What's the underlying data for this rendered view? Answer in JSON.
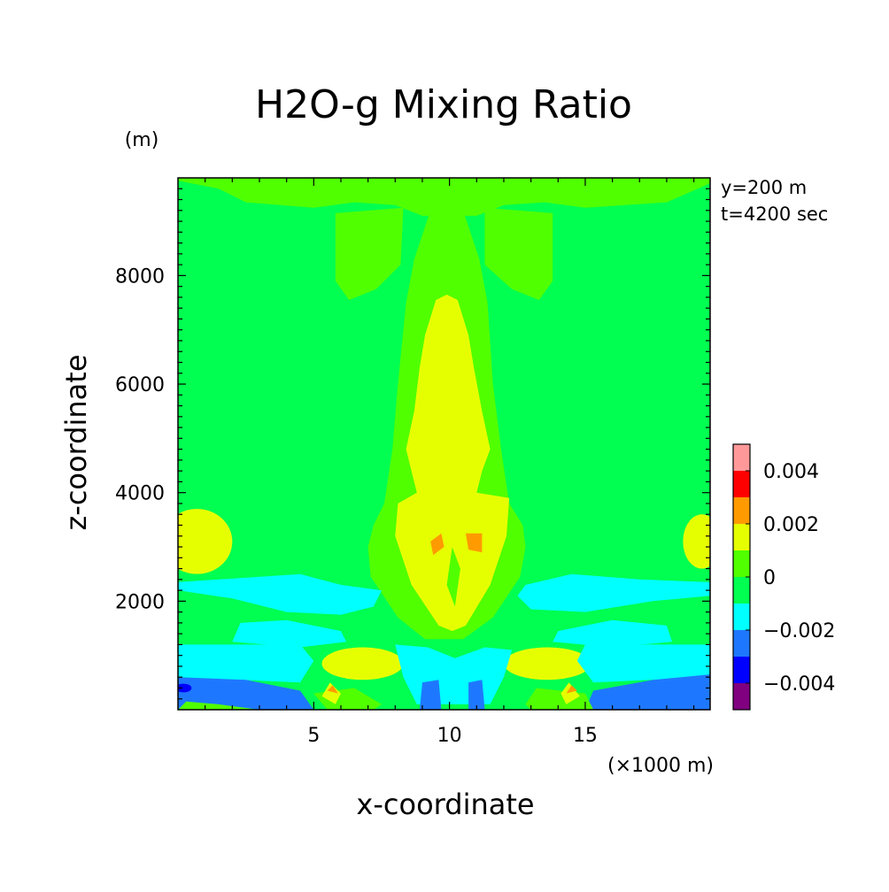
{
  "chart_data": {
    "type": "heatmap",
    "subtype": "filled-contour",
    "title": "H2O-g Mixing Ratio",
    "xlabel": "x-coordinate",
    "ylabel": "z-coordinate",
    "x_unit": "(×1000 m)",
    "y_unit": "(m)",
    "annotations": [
      "y=200 m",
      "t=4200 sec"
    ],
    "xlim": [
      0,
      19.6
    ],
    "ylim": [
      0,
      9800
    ],
    "x_ticks": [
      5,
      10,
      15
    ],
    "y_ticks": [
      2000,
      4000,
      6000,
      8000
    ],
    "colorbar": {
      "levels": [
        -0.005,
        -0.004,
        -0.003,
        -0.002,
        -0.001,
        0,
        0.001,
        0.002,
        0.003,
        0.004,
        0.005
      ],
      "colors": [
        "#800080",
        "#0000ff",
        "#1e78ff",
        "#00ffff",
        "#00ff50",
        "#50ff00",
        "#e6ff00",
        "#ff9a00",
        "#ff0000",
        "#ff9999"
      ],
      "tick_labels": [
        "-0.004",
        "-0.002",
        "0",
        "0.002",
        "0.004"
      ],
      "tick_values": [
        -0.004,
        -0.002,
        0,
        0.002,
        0.004
      ]
    },
    "background_value": -0.0005,
    "regions": [
      {
        "band": "0 to 0.001",
        "shape": "poly",
        "pts": [
          [
            0,
            9800
          ],
          [
            19.6,
            9800
          ],
          [
            19.6,
            9700
          ],
          [
            18,
            9350
          ],
          [
            15,
            9250
          ],
          [
            13.5,
            9350
          ],
          [
            12,
            9300
          ],
          [
            11,
            9100
          ],
          [
            9,
            9100
          ],
          [
            8,
            9300
          ],
          [
            6.5,
            9350
          ],
          [
            5,
            9250
          ],
          [
            2.5,
            9350
          ],
          [
            1.5,
            9600
          ],
          [
            0,
            9750
          ]
        ]
      },
      {
        "band": "0 to 0.001",
        "shape": "poly",
        "pts": [
          [
            5.8,
            9150
          ],
          [
            8.3,
            9250
          ],
          [
            8.2,
            8200
          ],
          [
            7.3,
            7750
          ],
          [
            6.3,
            7550
          ],
          [
            5.8,
            7900
          ]
        ]
      },
      {
        "band": "0 to 0.001",
        "shape": "poly",
        "pts": [
          [
            11.3,
            9250
          ],
          [
            13.8,
            9150
          ],
          [
            13.8,
            7900
          ],
          [
            13.3,
            7550
          ],
          [
            12.3,
            7750
          ],
          [
            11.3,
            8200
          ]
        ]
      },
      {
        "band": "0 to 0.001",
        "shape": "poly",
        "pts": [
          [
            9.3,
            9200
          ],
          [
            10.5,
            9200
          ],
          [
            11.1,
            8300
          ],
          [
            11.4,
            7500
          ],
          [
            11.6,
            6000
          ],
          [
            11.9,
            4800
          ],
          [
            12.2,
            3800
          ],
          [
            12.7,
            3400
          ],
          [
            12.8,
            3000
          ],
          [
            12.6,
            2450
          ],
          [
            11.6,
            1700
          ],
          [
            10.5,
            1300
          ],
          [
            9.1,
            1300
          ],
          [
            8.1,
            1700
          ],
          [
            7.1,
            2450
          ],
          [
            7.0,
            3000
          ],
          [
            7.2,
            3400
          ],
          [
            7.6,
            3800
          ],
          [
            7.9,
            4800
          ],
          [
            8.1,
            6000
          ],
          [
            8.4,
            7500
          ],
          [
            8.7,
            8300
          ]
        ]
      },
      {
        "band": "0.001 to 0.002",
        "shape": "poly",
        "pts": [
          [
            9.9,
            7650
          ],
          [
            10.3,
            7550
          ],
          [
            10.7,
            6900
          ],
          [
            10.9,
            6300
          ],
          [
            11.2,
            5500
          ],
          [
            11.5,
            4800
          ],
          [
            11.2,
            4400
          ],
          [
            11.0,
            4000
          ],
          [
            12.2,
            3900
          ],
          [
            12.1,
            3200
          ],
          [
            11.5,
            2300
          ],
          [
            10.6,
            1550
          ],
          [
            10.1,
            1450
          ],
          [
            9.6,
            1550
          ],
          [
            8.6,
            2300
          ],
          [
            8.0,
            3200
          ],
          [
            8.1,
            3800
          ],
          [
            8.8,
            4000
          ],
          [
            8.6,
            4400
          ],
          [
            8.4,
            4800
          ],
          [
            8.7,
            5500
          ],
          [
            8.9,
            6300
          ],
          [
            9.1,
            6900
          ],
          [
            9.5,
            7550
          ]
        ]
      },
      {
        "band": "0.001 to 0.002",
        "shape": "ellipse",
        "cx": 0.7,
        "cy": 3100,
        "rx": 1.3,
        "ry": 600
      },
      {
        "band": "0.001 to 0.002",
        "shape": "ellipse",
        "cx": 19.3,
        "cy": 3100,
        "rx": 0.7,
        "ry": 500
      },
      {
        "band": "0.001 to 0.002",
        "shape": "ellipse",
        "cx": 6.8,
        "cy": 850,
        "rx": 1.5,
        "ry": 300
      },
      {
        "band": "0.001 to 0.002",
        "shape": "ellipse",
        "cx": 13.6,
        "cy": 850,
        "rx": 1.6,
        "ry": 300
      },
      {
        "band": "0.002 to 0.003",
        "shape": "poly",
        "pts": [
          [
            9.3,
            3100
          ],
          [
            9.7,
            3250
          ],
          [
            9.8,
            3000
          ],
          [
            9.4,
            2850
          ]
        ]
      },
      {
        "band": "0.002 to 0.003",
        "shape": "poly",
        "pts": [
          [
            10.6,
            3250
          ],
          [
            11.2,
            3250
          ],
          [
            11.2,
            2900
          ],
          [
            10.7,
            2950
          ]
        ]
      },
      {
        "band": "0 to 0.001",
        "shape": "poly",
        "pts": [
          [
            10.1,
            3000
          ],
          [
            10.4,
            2600
          ],
          [
            10.2,
            1900
          ],
          [
            9.9,
            2300
          ]
        ]
      },
      {
        "band": "-0.002 to -0.001",
        "shape": "poly",
        "pts": [
          [
            1.5,
            2400
          ],
          [
            4.5,
            2500
          ],
          [
            6.0,
            2300
          ],
          [
            7.5,
            2200
          ],
          [
            7.2,
            1900
          ],
          [
            6.0,
            1750
          ],
          [
            4.0,
            1800
          ],
          [
            2.0,
            2050
          ],
          [
            0,
            2200
          ],
          [
            0,
            2350
          ]
        ]
      },
      {
        "band": "-0.002 to -0.001",
        "shape": "poly",
        "pts": [
          [
            12.8,
            2300
          ],
          [
            14.5,
            2500
          ],
          [
            17.0,
            2400
          ],
          [
            19.6,
            2350
          ],
          [
            19.6,
            2100
          ],
          [
            17.5,
            2000
          ],
          [
            15.0,
            1800
          ],
          [
            13.0,
            1850
          ],
          [
            12.5,
            2100
          ]
        ]
      },
      {
        "band": "-0.002 to -0.001",
        "shape": "poly",
        "pts": [
          [
            2.3,
            1600
          ],
          [
            4.0,
            1650
          ],
          [
            6.0,
            1450
          ],
          [
            6.2,
            1250
          ],
          [
            4.5,
            1150
          ],
          [
            2.0,
            1250
          ]
        ]
      },
      {
        "band": "-0.002 to -0.001",
        "shape": "poly",
        "pts": [
          [
            14.0,
            1450
          ],
          [
            16.0,
            1650
          ],
          [
            18.0,
            1550
          ],
          [
            18.2,
            1250
          ],
          [
            16.0,
            1150
          ],
          [
            13.8,
            1250
          ]
        ]
      },
      {
        "band": "-0.002 to -0.001",
        "shape": "poly",
        "pts": [
          [
            0,
            1200
          ],
          [
            4.5,
            1200
          ],
          [
            5.0,
            900
          ],
          [
            4.5,
            500
          ],
          [
            0,
            600
          ]
        ]
      },
      {
        "band": "-0.002 to -0.001",
        "shape": "poly",
        "pts": [
          [
            15.0,
            1200
          ],
          [
            19.6,
            1200
          ],
          [
            19.6,
            600
          ],
          [
            15.3,
            500
          ],
          [
            14.7,
            900
          ]
        ]
      },
      {
        "band": "-0.002 to -0.001",
        "shape": "poly",
        "pts": [
          [
            8.0,
            1200
          ],
          [
            9.2,
            1150
          ],
          [
            10.2,
            950
          ],
          [
            11.3,
            1150
          ],
          [
            12.3,
            1100
          ],
          [
            12.0,
            600
          ],
          [
            11.5,
            100
          ],
          [
            8.8,
            100
          ],
          [
            8.3,
            600
          ]
        ]
      },
      {
        "band": "-0.003 to -0.002",
        "shape": "poly",
        "pts": [
          [
            0,
            600
          ],
          [
            2.5,
            550
          ],
          [
            4.5,
            350
          ],
          [
            5.0,
            0
          ],
          [
            0,
            0
          ]
        ]
      },
      {
        "band": "-0.003 to -0.002",
        "shape": "poly",
        "pts": [
          [
            15.3,
            350
          ],
          [
            17.5,
            550
          ],
          [
            19.6,
            650
          ],
          [
            19.6,
            0
          ],
          [
            15.0,
            0
          ]
        ]
      },
      {
        "band": "-0.003 to -0.002",
        "shape": "poly",
        "pts": [
          [
            9.0,
            500
          ],
          [
            9.6,
            550
          ],
          [
            9.7,
            0
          ],
          [
            8.9,
            0
          ]
        ]
      },
      {
        "band": "-0.003 to -0.002",
        "shape": "poly",
        "pts": [
          [
            10.7,
            500
          ],
          [
            11.2,
            550
          ],
          [
            11.3,
            0
          ],
          [
            10.7,
            0
          ]
        ]
      },
      {
        "band": "-0.004 to -0.003",
        "shape": "ellipse",
        "cx": 0.2,
        "cy": 400,
        "rx": 0.3,
        "ry": 80
      },
      {
        "band": "0 to 0.001",
        "shape": "poly",
        "pts": [
          [
            0,
            0
          ],
          [
            0.3,
            150
          ],
          [
            1.5,
            100
          ],
          [
            3.0,
            0
          ]
        ]
      },
      {
        "band": "0 to 0.001",
        "shape": "poly",
        "pts": [
          [
            5.0,
            300
          ],
          [
            6.5,
            400
          ],
          [
            7.5,
            100
          ],
          [
            7.2,
            0
          ],
          [
            5.5,
            0
          ]
        ]
      },
      {
        "band": "0 to 0.001",
        "shape": "poly",
        "pts": [
          [
            12.8,
            100
          ],
          [
            13.2,
            400
          ],
          [
            15.0,
            300
          ],
          [
            15.3,
            0
          ],
          [
            13.0,
            0
          ]
        ]
      },
      {
        "band": "0.001 to 0.002",
        "shape": "poly",
        "pts": [
          [
            5.3,
            250
          ],
          [
            5.6,
            500
          ],
          [
            6.0,
            300
          ],
          [
            5.8,
            100
          ]
        ]
      },
      {
        "band": "0.001 to 0.002",
        "shape": "poly",
        "pts": [
          [
            14.1,
            300
          ],
          [
            14.4,
            500
          ],
          [
            14.8,
            250
          ],
          [
            14.3,
            100
          ]
        ]
      },
      {
        "band": "0.002 to 0.003",
        "shape": "poly",
        "pts": [
          [
            5.5,
            350
          ],
          [
            5.7,
            450
          ],
          [
            5.9,
            300
          ]
        ]
      },
      {
        "band": "0.002 to 0.003",
        "shape": "poly",
        "pts": [
          [
            14.3,
            300
          ],
          [
            14.5,
            450
          ],
          [
            14.7,
            350
          ]
        ]
      }
    ]
  }
}
